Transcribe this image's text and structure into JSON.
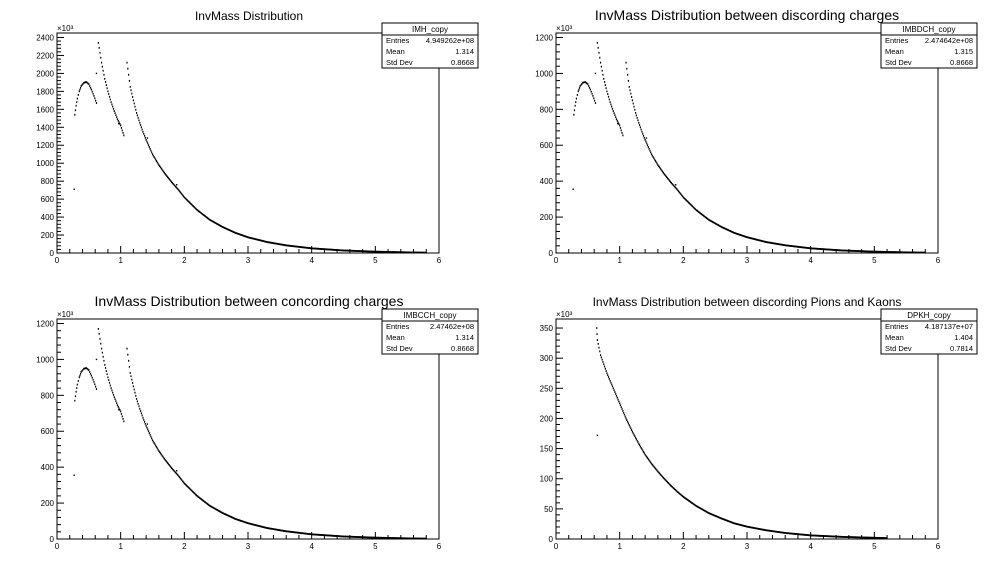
{
  "chart_data": [
    {
      "type": "scatter",
      "title": "InvMass Distribution",
      "exponent_label": "×10³",
      "xlim": [
        0,
        6
      ],
      "ylim": [
        0,
        2450
      ],
      "x_ticks": [
        0,
        1,
        2,
        3,
        4,
        5,
        6
      ],
      "y_ticks": [
        0,
        200,
        400,
        600,
        800,
        1000,
        1200,
        1400,
        1600,
        1800,
        2000,
        2200,
        2400
      ],
      "stats": {
        "name": "IMH_copy",
        "rows": [
          {
            "label": "Entries",
            "value": "4.949262e+08"
          },
          {
            "label": "Mean",
            "value": "1.314"
          },
          {
            "label": "Std Dev",
            "value": "0.8668"
          }
        ]
      },
      "series": [
        {
          "segments": [
            {
              "x": [
                0.28,
                0.3,
                0.32,
                0.35,
                0.38,
                0.42,
                0.46,
                0.5,
                0.54,
                0.58,
                0.62
              ],
              "y": [
                1540,
                1640,
                1720,
                1800,
                1860,
                1895,
                1905,
                1880,
                1820,
                1750,
                1670
              ]
            },
            {
              "x": [
                0.65,
                0.7,
                0.75,
                0.8,
                0.85,
                0.9,
                0.95,
                1.0,
                1.05
              ],
              "y": [
                2340,
                2120,
                1940,
                1800,
                1680,
                1580,
                1490,
                1420,
                1310
              ]
            },
            {
              "x": [
                1.1,
                1.15,
                1.2,
                1.25,
                1.3,
                1.35,
                1.4,
                1.45,
                1.5,
                1.6,
                1.7,
                1.8,
                1.9,
                2.0,
                2.2,
                2.4,
                2.6,
                2.8,
                3.0,
                3.3,
                3.6,
                4.0,
                4.5,
                5.0,
                5.5,
                5.8
              ],
              "y": [
                2120,
                1850,
                1700,
                1560,
                1450,
                1350,
                1260,
                1180,
                1100,
                980,
                880,
                790,
                710,
                620,
                480,
                370,
                290,
                225,
                175,
                122,
                85,
                52,
                28,
                15,
                7,
                4
              ]
            }
          ],
          "points": [
            {
              "x": 0.27,
              "y": 710
            },
            {
              "x": 0.62,
              "y": 2000
            },
            {
              "x": 0.97,
              "y": 1440
            },
            {
              "x": 1.42,
              "y": 1280
            },
            {
              "x": 1.88,
              "y": 760
            }
          ]
        }
      ]
    },
    {
      "type": "scatter",
      "title": "InvMass Distribution between discording charges",
      "exponent_label": "×10³",
      "xlim": [
        0,
        6
      ],
      "ylim": [
        0,
        1225
      ],
      "x_ticks": [
        0,
        1,
        2,
        3,
        4,
        5,
        6
      ],
      "y_ticks": [
        0,
        200,
        400,
        600,
        800,
        1000,
        1200
      ],
      "stats": {
        "name": "IMBDCH_copy",
        "rows": [
          {
            "label": "Entries",
            "value": "2.474642e+08"
          },
          {
            "label": "Mean",
            "value": "1.315"
          },
          {
            "label": "Std Dev",
            "value": "0.8668"
          }
        ]
      },
      "series": [
        {
          "segments": [
            {
              "x": [
                0.28,
                0.3,
                0.32,
                0.35,
                0.38,
                0.42,
                0.46,
                0.5,
                0.54,
                0.58,
                0.62
              ],
              "y": [
                770,
                820,
                860,
                900,
                930,
                948,
                952,
                940,
                910,
                875,
                835
              ]
            },
            {
              "x": [
                0.65,
                0.7,
                0.75,
                0.8,
                0.85,
                0.9,
                0.95,
                1.0,
                1.05
              ],
              "y": [
                1170,
                1060,
                970,
                900,
                840,
                790,
                745,
                710,
                655
              ]
            },
            {
              "x": [
                1.1,
                1.15,
                1.2,
                1.25,
                1.3,
                1.35,
                1.4,
                1.45,
                1.5,
                1.6,
                1.7,
                1.8,
                1.9,
                2.0,
                2.2,
                2.4,
                2.6,
                2.8,
                3.0,
                3.3,
                3.6,
                4.0,
                4.5,
                5.0,
                5.5,
                5.8
              ],
              "y": [
                1060,
                925,
                850,
                780,
                725,
                675,
                630,
                590,
                550,
                490,
                440,
                395,
                355,
                310,
                240,
                185,
                145,
                112,
                88,
                61,
                43,
                26,
                14,
                7.5,
                3.5,
                2
              ]
            }
          ],
          "points": [
            {
              "x": 0.27,
              "y": 355
            },
            {
              "x": 0.62,
              "y": 1000
            },
            {
              "x": 0.97,
              "y": 720
            },
            {
              "x": 1.42,
              "y": 640
            },
            {
              "x": 1.88,
              "y": 380
            }
          ]
        }
      ]
    },
    {
      "type": "scatter",
      "title": "InvMass Distribution between concording charges",
      "exponent_label": "×10³",
      "xlim": [
        0,
        6
      ],
      "ylim": [
        0,
        1225
      ],
      "x_ticks": [
        0,
        1,
        2,
        3,
        4,
        5,
        6
      ],
      "y_ticks": [
        0,
        200,
        400,
        600,
        800,
        1000,
        1200
      ],
      "stats": {
        "name": "IMBCCH_copy",
        "rows": [
          {
            "label": "Entries",
            "value": "2.47462e+08"
          },
          {
            "label": "Mean",
            "value": "1.314"
          },
          {
            "label": "Std Dev",
            "value": "0.8668"
          }
        ]
      },
      "series": [
        {
          "segments": [
            {
              "x": [
                0.28,
                0.3,
                0.32,
                0.35,
                0.38,
                0.42,
                0.46,
                0.5,
                0.54,
                0.58,
                0.62
              ],
              "y": [
                770,
                820,
                860,
                900,
                930,
                948,
                952,
                940,
                910,
                875,
                835
              ]
            },
            {
              "x": [
                0.65,
                0.7,
                0.75,
                0.8,
                0.85,
                0.9,
                0.95,
                1.0,
                1.05
              ],
              "y": [
                1170,
                1060,
                970,
                900,
                840,
                790,
                745,
                710,
                655
              ]
            },
            {
              "x": [
                1.1,
                1.15,
                1.2,
                1.25,
                1.3,
                1.35,
                1.4,
                1.45,
                1.5,
                1.6,
                1.7,
                1.8,
                1.9,
                2.0,
                2.2,
                2.4,
                2.6,
                2.8,
                3.0,
                3.3,
                3.6,
                4.0,
                4.5,
                5.0,
                5.5,
                5.8
              ],
              "y": [
                1060,
                925,
                850,
                780,
                725,
                675,
                630,
                590,
                550,
                490,
                440,
                395,
                355,
                310,
                240,
                185,
                145,
                112,
                88,
                61,
                43,
                26,
                14,
                7.5,
                3.5,
                2
              ]
            }
          ],
          "points": [
            {
              "x": 0.27,
              "y": 355
            },
            {
              "x": 0.62,
              "y": 1000
            },
            {
              "x": 0.97,
              "y": 720
            },
            {
              "x": 1.42,
              "y": 640
            },
            {
              "x": 1.88,
              "y": 380
            }
          ]
        }
      ]
    },
    {
      "type": "scatter",
      "title": "InvMass Distribution between discording Pions and Kaons",
      "exponent_label": "×10³",
      "xlim": [
        0,
        6
      ],
      "ylim": [
        0,
        365
      ],
      "x_ticks": [
        0,
        1,
        2,
        3,
        4,
        5,
        6
      ],
      "y_ticks": [
        0,
        50,
        100,
        150,
        200,
        250,
        300,
        350
      ],
      "stats": {
        "name": "DPKH_copy",
        "rows": [
          {
            "label": "Entries",
            "value": "4.187137e+07"
          },
          {
            "label": "Mean",
            "value": "1.404"
          },
          {
            "label": "Std Dev",
            "value": "0.7814"
          }
        ]
      },
      "series": [
        {
          "segments": [
            {
              "x": [
                0.64,
                0.65,
                0.7,
                0.75,
                0.8,
                0.9,
                1.0,
                1.1,
                1.2,
                1.3,
                1.4,
                1.5,
                1.6,
                1.7,
                1.8,
                1.9,
                2.0,
                2.2,
                2.4,
                2.6,
                2.8,
                3.0,
                3.3,
                3.6,
                4.0,
                4.5,
                5.0,
                5.2
              ],
              "y": [
                350,
                330,
                305,
                290,
                275,
                250,
                225,
                200,
                178,
                158,
                140,
                125,
                112,
                100,
                89,
                79,
                70,
                55,
                43,
                34,
                26,
                20.5,
                14.5,
                10,
                6,
                3.5,
                2,
                1.5
              ]
            }
          ],
          "points": [
            {
              "x": 0.65,
              "y": 172
            }
          ]
        }
      ]
    }
  ]
}
